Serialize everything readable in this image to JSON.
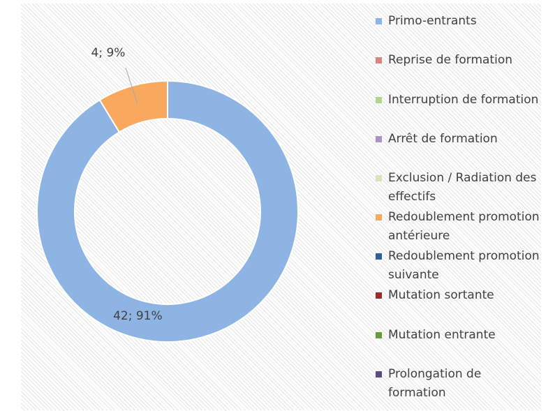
{
  "chart_data": {
    "type": "donut",
    "categories": [
      "Primo-entrants",
      "Reprise de formation",
      "Interruption de formation",
      "Arrêt de formation",
      "Exclusion / Radiation des effectifs",
      "Redoublement promotion antérieure",
      "Redoublement promotion suivante",
      "Mutation sortante",
      "Mutation entrante",
      "Prolongation de formation"
    ],
    "values": [
      42,
      0,
      0,
      0,
      0,
      4,
      0,
      0,
      0,
      0
    ],
    "value_labels": [
      "42; 91%",
      null,
      null,
      null,
      null,
      "4; 9%",
      null,
      null,
      null,
      null
    ],
    "colors": [
      "#8eb4e3",
      "#d98383",
      "#b3d48a",
      "#a993c6",
      "#d7e4bd",
      "#f9a95e",
      "#2e5f96",
      "#9c2b2b",
      "#6b9a3a",
      "#5c4a82"
    ],
    "legend": "right"
  }
}
